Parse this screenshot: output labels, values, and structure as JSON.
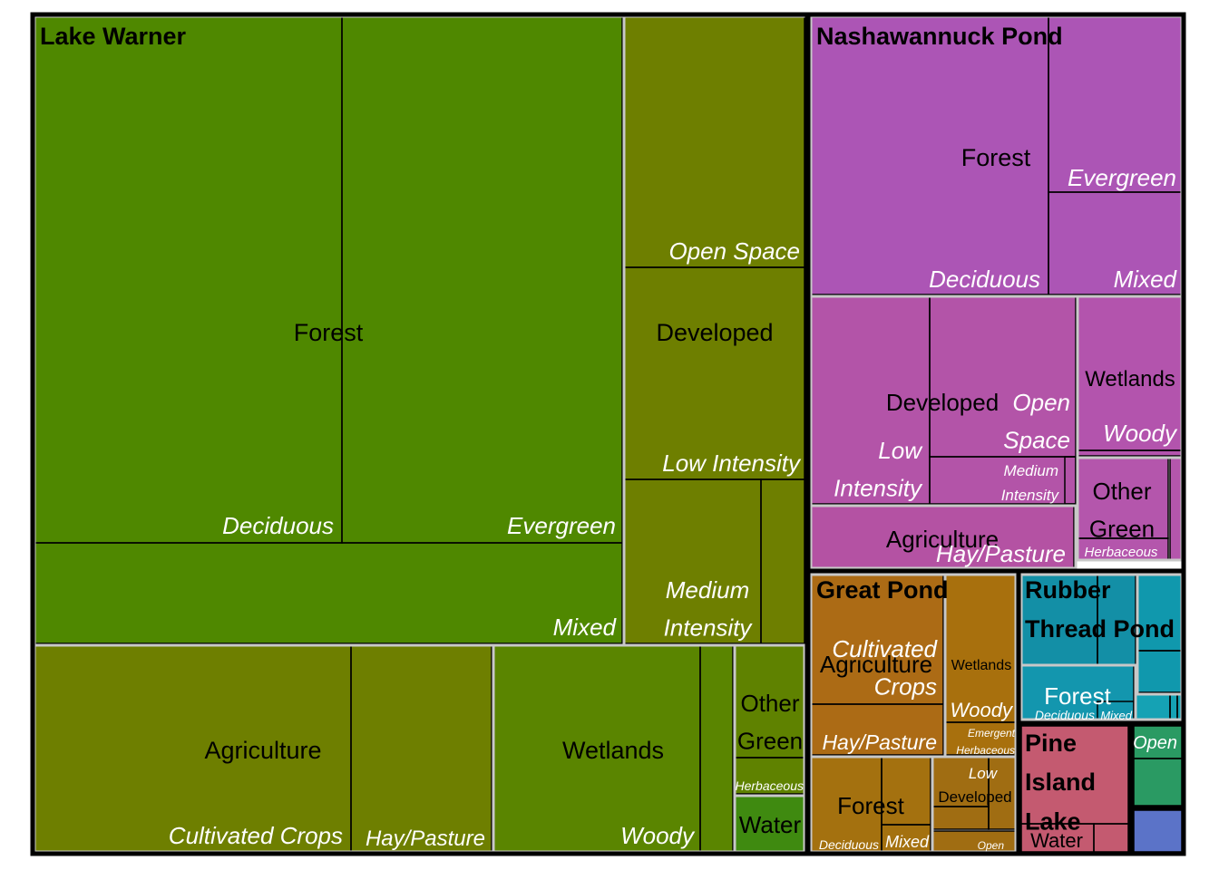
{
  "chart_data": {
    "type": "treemap",
    "hierarchy": [
      "pond",
      "land_cover_class",
      "land_cover_subclass"
    ],
    "colors": {
      "Lake Warner": "#4f8800",
      "Nashawannuck Pond": "#ad58b4",
      "Great Pond": "#a86c12",
      "Rubber Thread Pond": "#129fae",
      "Pine Island Lake": "#c45a70",
      "Other": "#2a9a63"
    },
    "ponds": [
      {
        "name": "Lake Warner",
        "color": "#4f8800",
        "groups": [
          {
            "name": "Forest",
            "color": "#4f8800",
            "children": [
              {
                "name": "Deciduous",
                "value": 195
              },
              {
                "name": "Evergreen",
                "value": 179
              },
              {
                "name": "Mixed",
                "value": 71
              }
            ]
          },
          {
            "name": "Developed",
            "color": "#6e7f00",
            "children": [
              {
                "name": "Open Space",
                "value": 55
              },
              {
                "name": "Low Intensity",
                "value": 46
              },
              {
                "name": "Medium Intensity",
                "value": 30
              },
              {
                "name": "",
                "value": 9
              }
            ]
          },
          {
            "name": "Agriculture",
            "color": "#6e7f00",
            "children": [
              {
                "name": "Cultivated Crops",
                "value": 87
              },
              {
                "name": "Hay/Pasture",
                "value": 39
              }
            ]
          },
          {
            "name": "Wetlands",
            "color": "#5a8500",
            "children": [
              {
                "name": "Woody",
                "value": 57
              },
              {
                "name": "",
                "value": 9
              }
            ]
          },
          {
            "name": "Other Green",
            "color": "#5f8200",
            "children": [
              {
                "name": "",
                "value": 12
              },
              {
                "name": "Herbaceous",
                "value": 5
              }
            ]
          },
          {
            "name": "Water",
            "color": "#3f8a10",
            "children": [
              {
                "name": "",
                "value": 13
              }
            ]
          }
        ]
      },
      {
        "name": "Nashawannuck Pond",
        "color": "#ad58b4",
        "groups": [
          {
            "name": "Forest",
            "color": "#ac55b5",
            "children": [
              {
                "name": "Deciduous",
                "value": 81
              },
              {
                "name": "Evergreen",
                "value": 38
              },
              {
                "name": "Mixed",
                "value": 36
              }
            ]
          },
          {
            "name": "Developed",
            "color": "#b354a8",
            "children": [
              {
                "name": "Low Intensity",
                "value": 34
              },
              {
                "name": "Open Space",
                "value": 39
              },
              {
                "name": "Medium Intensity",
                "value": 15
              },
              {
                "name": "",
                "value": 3
              }
            ]
          },
          {
            "name": "Agriculture",
            "color": "#b452a3",
            "children": [
              {
                "name": "Hay/Pasture",
                "value": 19
              }
            ]
          },
          {
            "name": "Wetlands",
            "color": "#b354ad",
            "children": [
              {
                "name": "Woody",
                "value": 13
              },
              {
                "name": "",
                "value": 1
              }
            ]
          },
          {
            "name": "Other Green",
            "color": "#b456ac",
            "children": [
              {
                "name": "",
                "value": 6
              },
              {
                "name": "Herbaceous",
                "value": 2
              },
              {
                "name": "",
                "value": 1
              }
            ]
          }
        ]
      },
      {
        "name": "Great Pond",
        "color": "#a86c12",
        "groups": [
          {
            "name": "Agriculture",
            "color": "#ac6b15",
            "children": [
              {
                "name": "Cultivated Crops",
                "value": 22
              },
              {
                "name": "Hay/Pasture",
                "value": 10
              }
            ]
          },
          {
            "name": "Wetlands",
            "color": "#a8700d",
            "children": [
              {
                "name": "Woody",
                "value": 14
              },
              {
                "name": "Emergent Herbaceous",
                "value": 4
              }
            ]
          },
          {
            "name": "Forest",
            "color": "#a4710f",
            "children": [
              {
                "name": "Deciduous",
                "value": 12
              },
              {
                "name": "Mixed",
                "value": 8
              },
              {
                "name": "",
                "value": 2
              }
            ]
          },
          {
            "name": "Developed",
            "color": "#a06d12",
            "children": [
              {
                "name": "Low",
                "value": 6
              },
              {
                "name": "",
                "value": 4
              },
              {
                "name": "Open",
                "value": 2
              },
              {
                "name": "",
                "value": 1
              }
            ]
          }
        ]
      },
      {
        "name": "Rubber Thread Pond",
        "color": "#129fae",
        "groups": [
          {
            "name": "",
            "color": "#138fa6",
            "children": [
              {
                "name": "",
                "value": 10
              },
              {
                "name": "",
                "value": 4
              }
            ]
          },
          {
            "name": "",
            "color": "#1098ad",
            "children": [
              {
                "name": "",
                "value": 3
              },
              {
                "name": "",
                "value": 2
              }
            ]
          },
          {
            "name": "Forest",
            "color": "#1396ae",
            "children": [
              {
                "name": "Deciduous",
                "value": 9
              },
              {
                "name": "Mixed",
                "value": 4
              }
            ]
          },
          {
            "name": "",
            "color": "#15a2b4",
            "children": [
              {
                "name": "",
                "value": 3
              },
              {
                "name": "",
                "value": 2
              },
              {
                "name": "",
                "value": 1
              }
            ]
          }
        ]
      },
      {
        "name": "Pine Island Lake",
        "color": "#c45a70",
        "groups": [
          {
            "name": "Water",
            "color": "#c45a70",
            "children": [
              {
                "name": "",
                "value": 14
              },
              {
                "name": "",
                "value": 2
              },
              {
                "name": "",
                "value": 1
              }
            ]
          }
        ]
      },
      {
        "name": "",
        "color": "#2a9a63",
        "groups": [
          {
            "name": "",
            "color": "#2a9a63",
            "children": [
              {
                "name": "Open",
                "value": 4
              },
              {
                "name": "",
                "value": 2
              }
            ]
          }
        ]
      },
      {
        "name": "",
        "color": "#5b73c8",
        "groups": [
          {
            "name": "",
            "color": "#5b73c8",
            "children": [
              {
                "name": "",
                "value": 1
              }
            ]
          }
        ]
      }
    ]
  }
}
